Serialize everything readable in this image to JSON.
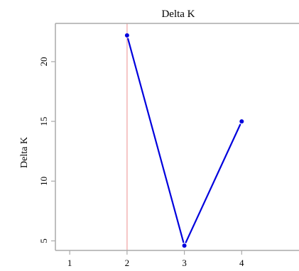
{
  "chart_data": {
    "type": "line",
    "title": "Delta K",
    "xlabel": "",
    "ylabel": "Delta K",
    "x": [
      2,
      3,
      4
    ],
    "series": [
      {
        "values": [
          22.2,
          4.6,
          15.0
        ]
      }
    ],
    "xlim": [
      0.75,
      5.0
    ],
    "ylim": [
      4.2,
      23.2
    ],
    "xticks": [
      1,
      2,
      3,
      4
    ],
    "yticks": [
      5,
      10,
      15,
      20
    ],
    "reference_line_x": 2,
    "grid": false,
    "colors": {
      "line": "#0000dd",
      "point": "#0000dd",
      "reference": "#f4b8b8",
      "axis": "#aaaaaa"
    }
  }
}
